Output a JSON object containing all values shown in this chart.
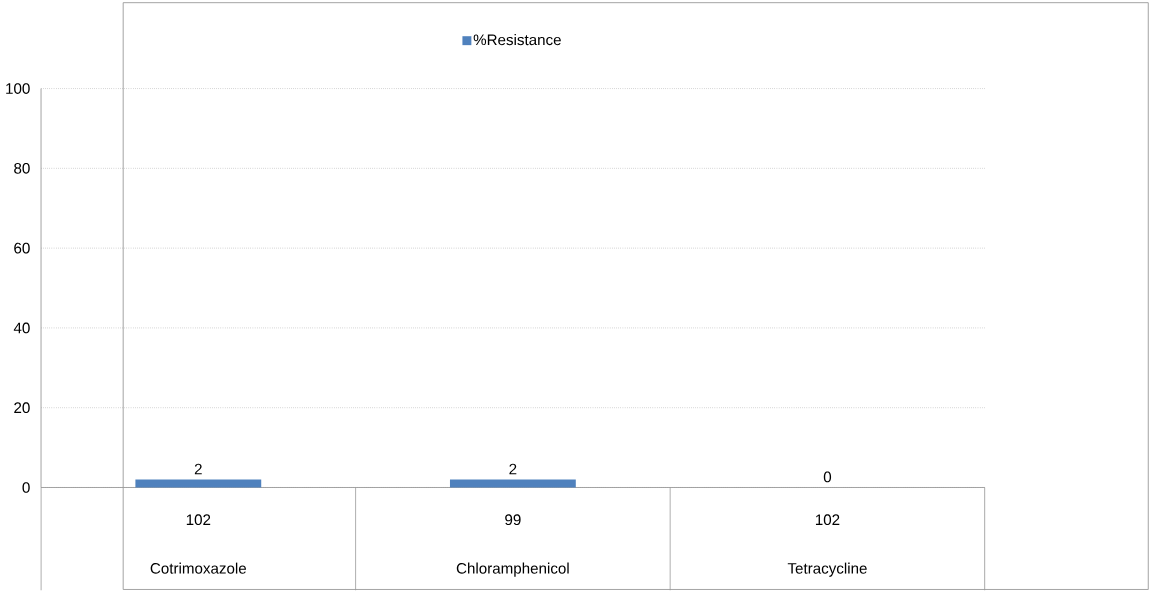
{
  "chart_data": {
    "type": "bar",
    "categories": [
      "Cotrimoxazole",
      "Chloramphenicol",
      "Tetracycline"
    ],
    "series": [
      {
        "name": "%Resistance",
        "color": "#4f81bd",
        "values": [
          2,
          2,
          0
        ]
      }
    ],
    "ylim": [
      0,
      100
    ],
    "yticks": [
      0,
      20,
      40,
      60,
      80,
      100
    ],
    "grid": "y",
    "legend": "top",
    "data_labels": true,
    "annotations": [
      "102",
      "99",
      "102"
    ]
  }
}
